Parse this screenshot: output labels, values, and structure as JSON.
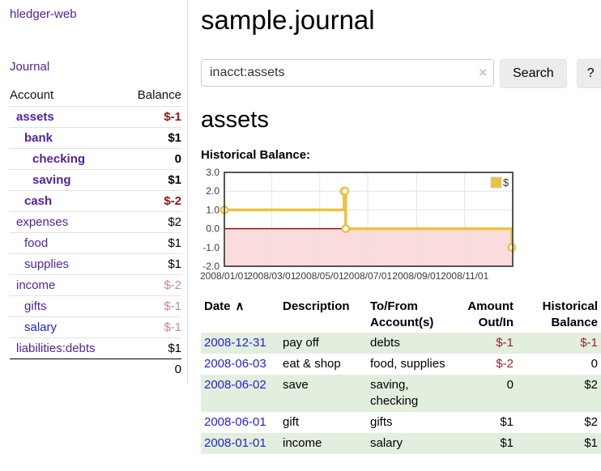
{
  "sidebar": {
    "brand": "hledger-web",
    "journal_link": "Journal",
    "accounts_table": {
      "headers": [
        "Account",
        "Balance"
      ],
      "rows": [
        {
          "account": "assets",
          "indent": 1,
          "bold": true,
          "link": "purple",
          "balance": "$-1",
          "balance_style": "neg-strong"
        },
        {
          "account": "bank",
          "indent": 2,
          "bold": true,
          "link": "purple",
          "balance": "$1",
          "balance_style": ""
        },
        {
          "account": "checking",
          "indent": 3,
          "bold": true,
          "link": "purple",
          "balance": "0",
          "balance_style": ""
        },
        {
          "account": "saving",
          "indent": 3,
          "bold": true,
          "link": "purple",
          "balance": "$1",
          "balance_style": ""
        },
        {
          "account": "cash",
          "indent": 2,
          "bold": true,
          "link": "purple",
          "balance": "$-2",
          "balance_style": "neg-strong"
        },
        {
          "account": "expenses",
          "indent": 1,
          "bold": false,
          "link": "purple",
          "balance": "$2",
          "balance_style": ""
        },
        {
          "account": "food",
          "indent": 2,
          "bold": false,
          "link": "purple",
          "balance": "$1",
          "balance_style": ""
        },
        {
          "account": "supplies",
          "indent": 2,
          "bold": false,
          "link": "purple",
          "balance": "$1",
          "balance_style": ""
        },
        {
          "account": "income",
          "indent": 1,
          "bold": false,
          "link": "purple",
          "balance": "$-2",
          "balance_style": "neg-soft"
        },
        {
          "account": "gifts",
          "indent": 2,
          "bold": false,
          "link": "purple",
          "balance": "$-1",
          "balance_style": "neg-soft"
        },
        {
          "account": "salary",
          "indent": 2,
          "bold": false,
          "link": "blue",
          "balance": "$-1",
          "balance_style": "neg-soft"
        },
        {
          "account": "liabilities:debts",
          "indent": 1,
          "bold": false,
          "link": "purple",
          "balance": "$1",
          "balance_style": ""
        }
      ],
      "total": "0"
    }
  },
  "main": {
    "title": "sample.journal",
    "search": {
      "value": "inacct:assets",
      "clear_icon": "×",
      "button": "Search",
      "help_button": "?"
    },
    "account_heading": "assets",
    "chart_heading": "Historical Balance:"
  },
  "chart_data": {
    "type": "line",
    "step": true,
    "title": "Historical Balance",
    "series": [
      {
        "name": "$",
        "color": "#EDC240",
        "points": [
          {
            "date": "2008-01-01",
            "value": 1
          },
          {
            "date": "2008-06-01",
            "value": 2
          },
          {
            "date": "2008-06-02",
            "value": 2
          },
          {
            "date": "2008-06-03",
            "value": 0
          },
          {
            "date": "2008-12-31",
            "value": -1
          }
        ]
      }
    ],
    "x_ticks": [
      "2008/01/01",
      "2008/03/01",
      "2008/05/01",
      "2008/07/01",
      "2008/09/01",
      "2008/11/01"
    ],
    "x_range": [
      "2008-01-01",
      "2009-01-01"
    ],
    "y_ticks": [
      "3.0",
      "2.0",
      "1.0",
      "0.0",
      "-1.0",
      "-2.0"
    ],
    "ylim": [
      -2,
      3
    ],
    "grid": true,
    "negative_region_fill": "#fadcdc",
    "zero_line_color": "#8b0000",
    "legend": {
      "label": "$",
      "position": "top-right"
    }
  },
  "register_table": {
    "headers": [
      {
        "label": "Date",
        "sort_icon": "∧"
      },
      {
        "label": "Description"
      },
      {
        "label": "To/From Account(s)"
      },
      {
        "label": "Amount Out/In",
        "align": "right"
      },
      {
        "label": "Historical Balance",
        "align": "right"
      }
    ],
    "rows": [
      {
        "date": "2008-12-31",
        "description": "pay off",
        "to_from": "debts",
        "amount": "$-1",
        "amount_neg": true,
        "balance": "$-1",
        "balance_neg": true
      },
      {
        "date": "2008-06-03",
        "description": "eat & shop",
        "to_from": "food, supplies",
        "amount": "$-2",
        "amount_neg": true,
        "balance": "0",
        "balance_neg": false
      },
      {
        "date": "2008-06-02",
        "description": "save",
        "to_from": "saving, checking",
        "amount": "0",
        "amount_neg": false,
        "balance": "$2",
        "balance_neg": false
      },
      {
        "date": "2008-06-01",
        "description": "gift",
        "to_from": "gifts",
        "amount": "$1",
        "amount_neg": false,
        "balance": "$2",
        "balance_neg": false
      },
      {
        "date": "2008-01-01",
        "description": "income",
        "to_from": "salary",
        "amount": "$1",
        "amount_neg": false,
        "balance": "$1",
        "balance_neg": false
      }
    ]
  }
}
